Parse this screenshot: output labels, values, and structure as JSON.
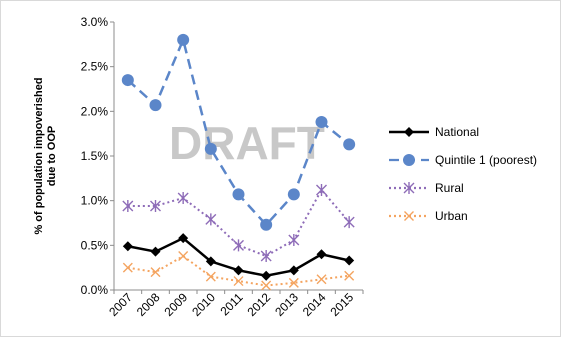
{
  "chart_data": {
    "type": "line",
    "title": "",
    "watermark": "DRAFT",
    "xlabel": "",
    "ylabel_lines": [
      "% of population impoverished",
      "due to OOP"
    ],
    "x": [
      "2007",
      "2008",
      "2009",
      "2010",
      "2011",
      "2012",
      "2013",
      "2014",
      "2015"
    ],
    "ylim": [
      0,
      3.0
    ],
    "yticks": [
      "0.0%",
      "0.5%",
      "1.0%",
      "1.5%",
      "2.0%",
      "2.5%",
      "3.0%"
    ],
    "grid": false,
    "legend_position": "right",
    "series": [
      {
        "name": "National",
        "color": "#000000",
        "style": "solid",
        "marker": "diamond",
        "values": [
          0.49,
          0.43,
          0.58,
          0.32,
          0.22,
          0.16,
          0.22,
          0.4,
          0.33
        ]
      },
      {
        "name": "Quintile 1 (poorest)",
        "color": "#5b86c9",
        "style": "dashed",
        "marker": "circle",
        "values": [
          2.35,
          2.07,
          2.8,
          1.58,
          1.07,
          0.73,
          1.07,
          1.88,
          1.63
        ]
      },
      {
        "name": "Rural",
        "color": "#8e6cb8",
        "style": "dotted",
        "marker": "star",
        "values": [
          0.94,
          0.94,
          1.03,
          0.79,
          0.5,
          0.38,
          0.56,
          1.12,
          0.76
        ]
      },
      {
        "name": "Urban",
        "color": "#f4a460",
        "style": "dotted",
        "marker": "x",
        "values": [
          0.25,
          0.2,
          0.38,
          0.15,
          0.1,
          0.05,
          0.08,
          0.12,
          0.16
        ]
      }
    ]
  }
}
